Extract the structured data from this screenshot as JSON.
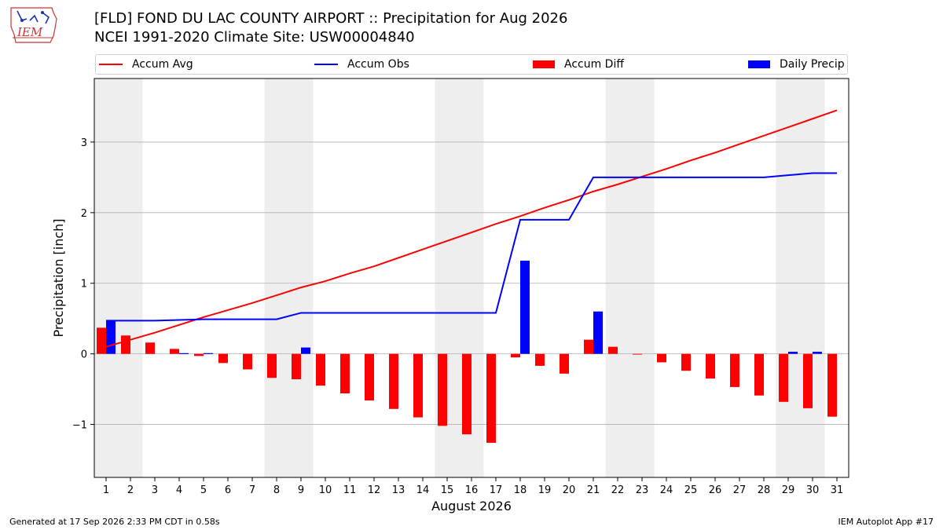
{
  "header": {
    "title_line1": "[FLD] FOND DU LAC COUNTY AIRPORT :: Precipitation for Aug 2026",
    "title_line2": "NCEI 1991-2020 Climate Site: USW00004840",
    "logo_text": "IEM"
  },
  "footer": {
    "generated": "Generated at 17 Sep 2026 2:33 PM CDT in 0.58s",
    "app": "IEM Autoplot App #17"
  },
  "colors": {
    "accum_avg": "#ff0000",
    "accum_obs": "#0000ff",
    "accum_diff": "#ff0000",
    "daily_precip": "#0000ff",
    "weekend_shade": "#eeeeee",
    "grid": "#b0b0b0"
  },
  "chart_data": {
    "type": "bar",
    "xlabel": "August 2026",
    "ylabel": "Precipitation [inch]",
    "ylim": [
      -1.75,
      3.9
    ],
    "yticks": [
      -1,
      0,
      1,
      2,
      3
    ],
    "ytick_labels": [
      "−1",
      "0",
      "1",
      "2",
      "3"
    ],
    "grid": "horizontal",
    "legend_position": "top",
    "x": [
      1,
      2,
      3,
      4,
      5,
      6,
      7,
      8,
      9,
      10,
      11,
      12,
      13,
      14,
      15,
      16,
      17,
      18,
      19,
      20,
      21,
      22,
      23,
      24,
      25,
      26,
      27,
      28,
      29,
      30,
      31
    ],
    "shaded_day_ranges": [
      [
        1,
        2
      ],
      [
        8,
        9
      ],
      [
        15,
        16
      ],
      [
        22,
        23
      ],
      [
        29,
        30
      ]
    ],
    "series": [
      {
        "name": "Accum Avg",
        "kind": "line",
        "values": [
          0.1,
          0.2,
          0.3,
          0.41,
          0.52,
          0.62,
          0.72,
          0.83,
          0.94,
          1.03,
          1.14,
          1.24,
          1.36,
          1.48,
          1.6,
          1.72,
          1.84,
          1.95,
          2.07,
          2.18,
          2.3,
          2.4,
          2.51,
          2.62,
          2.74,
          2.85,
          2.97,
          3.09,
          3.21,
          3.33,
          3.45
        ]
      },
      {
        "name": "Accum Obs",
        "kind": "line",
        "values": [
          0.47,
          0.47,
          0.47,
          0.48,
          0.49,
          0.49,
          0.49,
          0.49,
          0.58,
          0.58,
          0.58,
          0.58,
          0.58,
          0.58,
          0.58,
          0.58,
          0.58,
          1.9,
          1.9,
          1.9,
          2.5,
          2.5,
          2.5,
          2.5,
          2.5,
          2.5,
          2.5,
          2.5,
          2.53,
          2.56,
          2.56
        ]
      },
      {
        "name": "Accum Diff",
        "kind": "bar",
        "values": [
          0.37,
          0.26,
          0.16,
          0.07,
          -0.03,
          -0.13,
          -0.22,
          -0.34,
          -0.36,
          -0.45,
          -0.56,
          -0.66,
          -0.78,
          -0.9,
          -1.02,
          -1.14,
          -1.26,
          -0.05,
          -0.17,
          -0.28,
          0.2,
          0.1,
          -0.01,
          -0.12,
          -0.24,
          -0.35,
          -0.47,
          -0.59,
          -0.68,
          -0.77,
          -0.89
        ]
      },
      {
        "name": "Daily Precip",
        "kind": "bar",
        "values": [
          0.47,
          0,
          0,
          0.01,
          0.01,
          0,
          0,
          0,
          0.09,
          0,
          0,
          0,
          0,
          0,
          0,
          0,
          0,
          1.32,
          0,
          0,
          0.6,
          0,
          0,
          0,
          0,
          0,
          0,
          0,
          0.03,
          0.03,
          0
        ]
      }
    ]
  }
}
